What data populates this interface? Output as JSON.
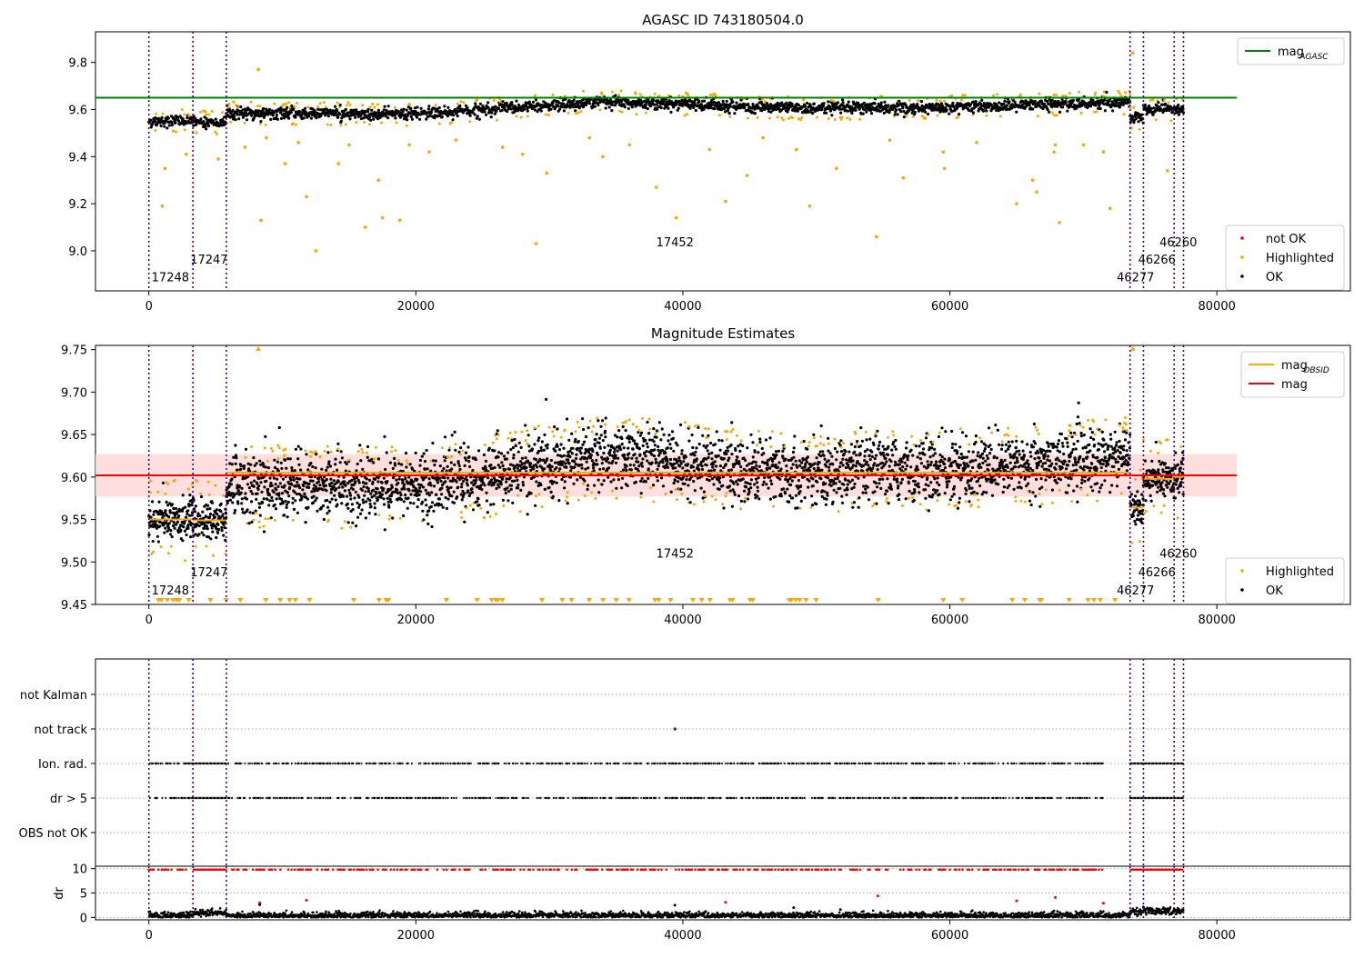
{
  "chart_data": [
    {
      "type": "scatter",
      "title": "AGASC ID 743180504.0",
      "xlim": [
        -4000,
        90000
      ],
      "ylim": [
        8.83,
        9.93
      ],
      "xticks": [
        0,
        20000,
        40000,
        60000,
        80000
      ],
      "yticks": [
        9.0,
        9.2,
        9.4,
        9.6,
        9.8
      ],
      "ytick_labels": [
        "9.0",
        "9.2",
        "9.4",
        "9.6",
        "9.8"
      ],
      "legend_upper": {
        "position": "top-right",
        "entries": [
          {
            "label": "mag",
            "sub": "AGASC",
            "color": "#008000"
          }
        ]
      },
      "legend_lower": {
        "position": "bottom-right",
        "entries": [
          {
            "label": "not OK",
            "color": "#ff0000"
          },
          {
            "label": "Highlighted",
            "color": "#ffa500"
          },
          {
            "label": "OK",
            "color": "#000000"
          }
        ]
      },
      "mag_agasc": 9.65,
      "hline_xrange": [
        -4000,
        81500
      ],
      "segments": [
        {
          "x0": 0,
          "x1": 3300,
          "level": 9.55
        },
        {
          "x0": 3300,
          "x1": 5800,
          "level": 9.545
        },
        {
          "x0": 5800,
          "x1": 73500,
          "levels": [
            [
              5800,
              9.585
            ],
            [
              20000,
              9.58
            ],
            [
              34000,
              9.635
            ],
            [
              48000,
              9.605
            ],
            [
              60000,
              9.61
            ],
            [
              73500,
              9.63
            ]
          ]
        },
        {
          "x0": 73500,
          "x1": 74500,
          "level": 9.565
        },
        {
          "x0": 74500,
          "x1": 76800,
          "level": 9.6
        },
        {
          "x0": 76800,
          "x1": 77500,
          "level": 9.6
        }
      ],
      "highlighted_points": [
        [
          1000,
          9.19
        ],
        [
          1200,
          9.35
        ],
        [
          2800,
          9.41
        ],
        [
          5200,
          9.39
        ],
        [
          7200,
          9.44
        ],
        [
          8200,
          9.77
        ],
        [
          8400,
          9.13
        ],
        [
          8800,
          9.48
        ],
        [
          10200,
          9.37
        ],
        [
          11200,
          9.46
        ],
        [
          11800,
          9.23
        ],
        [
          12500,
          9.0
        ],
        [
          14200,
          9.37
        ],
        [
          15000,
          9.45
        ],
        [
          16200,
          9.1
        ],
        [
          17200,
          9.3
        ],
        [
          17500,
          9.14
        ],
        [
          18800,
          9.13
        ],
        [
          19500,
          9.45
        ],
        [
          21000,
          9.42
        ],
        [
          23000,
          9.47
        ],
        [
          26500,
          9.44
        ],
        [
          28000,
          9.41
        ],
        [
          29000,
          9.03
        ],
        [
          29800,
          9.33
        ],
        [
          33000,
          9.48
        ],
        [
          34000,
          9.4
        ],
        [
          36000,
          9.45
        ],
        [
          38000,
          9.27
        ],
        [
          39500,
          9.14
        ],
        [
          42000,
          9.43
        ],
        [
          43200,
          9.21
        ],
        [
          44800,
          9.32
        ],
        [
          46000,
          9.48
        ],
        [
          48500,
          9.43
        ],
        [
          49500,
          9.19
        ],
        [
          51500,
          9.35
        ],
        [
          54500,
          9.06
        ],
        [
          55500,
          9.47
        ],
        [
          56500,
          9.31
        ],
        [
          59500,
          9.42
        ],
        [
          59600,
          9.35
        ],
        [
          62000,
          9.46
        ],
        [
          65000,
          9.2
        ],
        [
          66200,
          9.3
        ],
        [
          66500,
          9.25
        ],
        [
          67900,
          9.45
        ],
        [
          68200,
          9.12
        ],
        [
          67800,
          9.42
        ],
        [
          70000,
          9.45
        ],
        [
          71500,
          9.42
        ],
        [
          72000,
          9.18
        ],
        [
          73700,
          9.84
        ],
        [
          76300,
          9.34
        ]
      ],
      "annotations": [
        {
          "text": "17248",
          "x": 200,
          "y": 8.87
        },
        {
          "text": "17247",
          "x": 3100,
          "y": 8.945
        },
        {
          "text": "17452",
          "x": 38000,
          "y": 9.02
        },
        {
          "text": "46277",
          "x": 72500,
          "y": 8.87
        },
        {
          "text": "46266",
          "x": 74100,
          "y": 8.945
        },
        {
          "text": "46260",
          "x": 75700,
          "y": 9.02
        }
      ],
      "vlines_x": [
        0,
        3300,
        5800,
        73500,
        74500,
        76800,
        77500
      ]
    },
    {
      "type": "scatter",
      "title": "Magnitude Estimates",
      "xlim": [
        -4000,
        90000
      ],
      "ylim": [
        9.45,
        9.755
      ],
      "xticks": [
        0,
        20000,
        40000,
        60000,
        80000
      ],
      "yticks": [
        9.45,
        9.5,
        9.55,
        9.6,
        9.65,
        9.7,
        9.75
      ],
      "ytick_labels": [
        "9.45",
        "9.50",
        "9.55",
        "9.60",
        "9.65",
        "9.70",
        "9.75"
      ],
      "legend_upper": {
        "position": "top-right",
        "entries": [
          {
            "label": "mag",
            "sub": "OBSID",
            "color": "#ffa500"
          },
          {
            "label": "mag",
            "sub": "",
            "color": "#ff0000"
          }
        ]
      },
      "legend_lower": {
        "position": "bottom-right",
        "entries": [
          {
            "label": "Highlighted",
            "color": "#ffa500"
          },
          {
            "label": "OK",
            "color": "#000000"
          }
        ]
      },
      "mag_mean": 9.602,
      "mag_band": [
        9.577,
        9.627
      ],
      "hline_xrange": [
        -4000,
        81500
      ],
      "mag_obsid": [
        {
          "x0": 0,
          "x1": 3300,
          "mag": 9.55
        },
        {
          "x0": 3300,
          "x1": 5800,
          "mag": 9.549
        },
        {
          "x0": 5800,
          "x1": 73500,
          "mag": 9.605
        },
        {
          "x0": 73500,
          "x1": 74500,
          "mag": 9.564
        },
        {
          "x0": 74500,
          "x1": 76800,
          "mag": 9.598
        },
        {
          "x0": 76800,
          "x1": 77500,
          "mag": 9.6
        }
      ],
      "annotations": [
        {
          "text": "17248",
          "x": 200,
          "y": 9.462
        },
        {
          "text": "17247",
          "x": 3100,
          "y": 9.483
        },
        {
          "text": "17452",
          "x": 38000,
          "y": 9.505
        },
        {
          "text": "46277",
          "x": 72500,
          "y": 9.462
        },
        {
          "text": "46266",
          "x": 74100,
          "y": 9.483
        },
        {
          "text": "46260",
          "x": 75700,
          "y": 9.505
        }
      ],
      "vlines_x": [
        0,
        3300,
        5800,
        73500,
        74500,
        76800,
        77500
      ]
    },
    {
      "type": "scatter",
      "title": "",
      "xlim": [
        -4000,
        90000
      ],
      "categories": [
        "not Kalman",
        "not track",
        "Ion. rad.",
        "dr > 5",
        "OBS not OK"
      ],
      "flag_rows": [
        {
          "name": "not Kalman",
          "ranges": []
        },
        {
          "name": "not track",
          "ranges": [
            [
              39400,
              39400
            ]
          ]
        },
        {
          "name": "Ion. rad.",
          "ranges": [
            [
              0,
              71500
            ],
            [
              73500,
              77500
            ]
          ]
        },
        {
          "name": "dr > 5",
          "ranges": [
            [
              0,
              71500
            ],
            [
              73500,
              77500
            ]
          ]
        },
        {
          "name": "OBS not OK",
          "ranges": []
        }
      ],
      "vlines_x": [
        0,
        3300,
        5800,
        73500,
        74500,
        76800,
        77500
      ]
    },
    {
      "type": "scatter",
      "title": "",
      "ylabel": "dr",
      "xlim": [
        -4000,
        90000
      ],
      "ylim": [
        -0.5,
        10.5
      ],
      "xticks": [
        0,
        20000,
        40000,
        60000,
        80000
      ],
      "yticks": [
        0,
        5,
        10
      ],
      "ytick_labels": [
        "0",
        "5",
        "10"
      ],
      "clipped_value": 9.8,
      "vlines_x": [
        0,
        3300,
        5800,
        73500,
        74500,
        76800,
        77500
      ]
    }
  ],
  "colors": {
    "ok": "#000000",
    "highlighted": "#ffa500",
    "not_ok": "#ff0000",
    "agasc": "#008000",
    "vline": "#4b0082",
    "band": "#ffd6d6"
  },
  "xtick_labels": [
    "0",
    "20000",
    "40000",
    "60000",
    "80000"
  ]
}
